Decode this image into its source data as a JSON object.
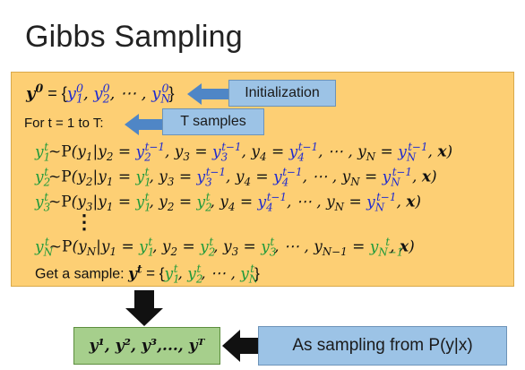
{
  "title": "Gibbs Sampling",
  "init_line": {
    "lhs": "y",
    "lhs_sup": "0",
    "eq": " = {",
    "e1": "y",
    "e1_sub": "1",
    "e1_sup": "0",
    "e2": "y",
    "e2_sub": "2",
    "e2_sup": "0",
    "dots": ", ⋯ , ",
    "e3": "y",
    "e3_sub": "N",
    "e3_sup": "0",
    "close": "}"
  },
  "init_label": "Initialization",
  "for_text": "For t = 1 to T:",
  "tsamples_label": "T samples",
  "vdots": "⋮",
  "get_sample_text": "Get a sample: ",
  "sample_expr": {
    "y": "y",
    "sup": "t",
    "eq": " = {",
    "e1": "y",
    "e1_sub": "1",
    "e2": "y",
    "e2_sub": "2",
    "dots": ", ⋯ , ",
    "e3": "y",
    "e3_sub": "N",
    "close": "}"
  },
  "sequence_label": "y¹, y², y³,..., yᵀ",
  "as_sampling_label": "As sampling from P(y|x)",
  "colors": {
    "box_fill": "#fdcf74",
    "callout_fill": "#9cc3e6",
    "seq_fill": "#a6cf8c",
    "blue_term": "#1f2bd0",
    "green_term": "#1e9a3b"
  }
}
